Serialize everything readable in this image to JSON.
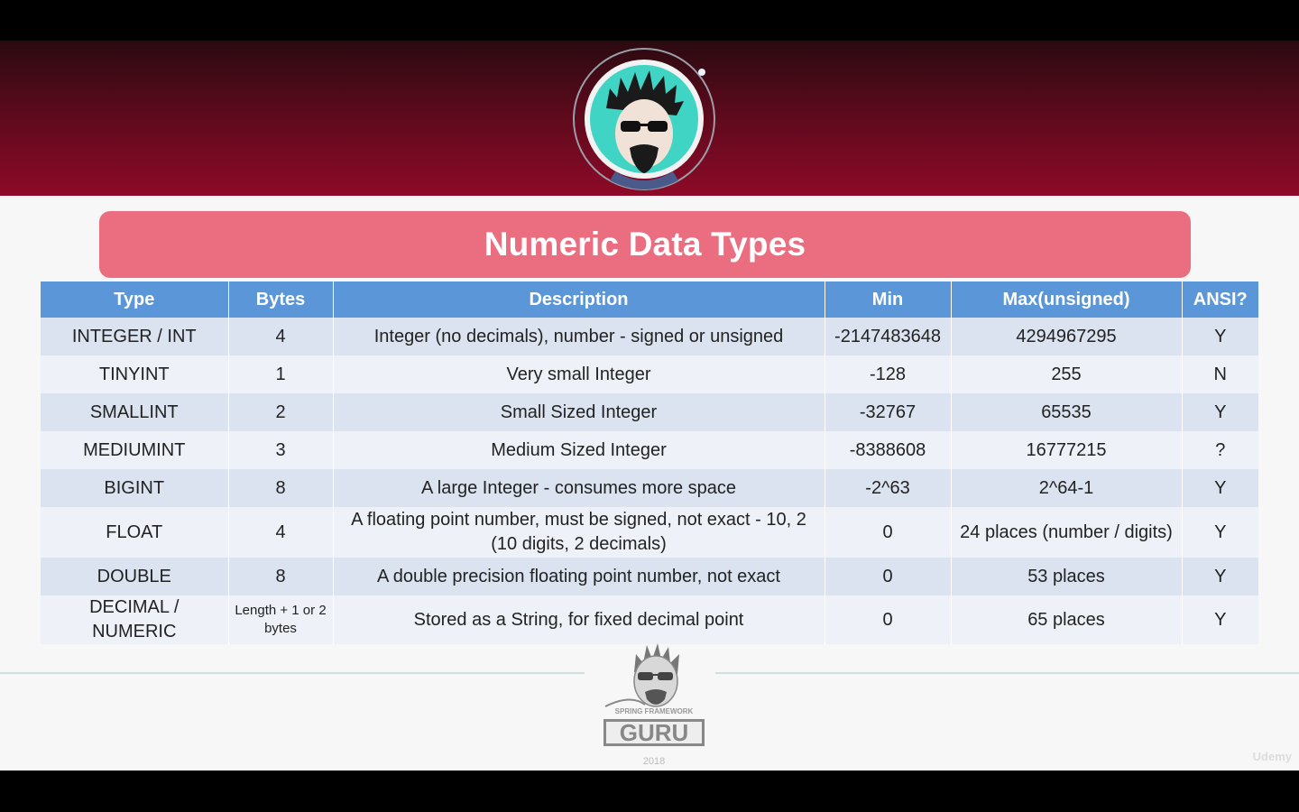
{
  "slide": {
    "title": "Numeric Data Types"
  },
  "table": {
    "headers": [
      "Type",
      "Bytes",
      "Description",
      "Min",
      "Max(unsigned)",
      "ANSI?"
    ],
    "rows": [
      {
        "type": "INTEGER / INT",
        "bytes": "4",
        "description": "Integer (no decimals), number - signed or unsigned",
        "min": "-2147483648",
        "max": "4294967295",
        "ansi": "Y"
      },
      {
        "type": "TINYINT",
        "bytes": "1",
        "description": "Very small Integer",
        "min": "-128",
        "max": "255",
        "ansi": "N"
      },
      {
        "type": "SMALLINT",
        "bytes": "2",
        "description": "Small Sized Integer",
        "min": "-32767",
        "max": "65535",
        "ansi": "Y"
      },
      {
        "type": "MEDIUMINT",
        "bytes": "3",
        "description": "Medium Sized Integer",
        "min": "-8388608",
        "max": "16777215",
        "ansi": "?"
      },
      {
        "type": "BIGINT",
        "bytes": "8",
        "description": "A large Integer - consumes more space",
        "min": "-2^63",
        "max": "2^64-1",
        "ansi": "Y"
      },
      {
        "type": "FLOAT",
        "bytes": "4",
        "description": "A floating point number, must be signed, not exact - 10, 2 (10 digits, 2 decimals)",
        "min": "0",
        "max": "24 places (number / digits)",
        "ansi": "Y"
      },
      {
        "type": "DOUBLE",
        "bytes": "8",
        "description": "A double precision floating point number, not exact",
        "min": "0",
        "max": "53 places",
        "ansi": "Y"
      },
      {
        "type": "DECIMAL / NUMERIC",
        "bytes": "Length + 1 or 2 bytes",
        "description": "Stored as a String, for fixed decimal point",
        "min": "0",
        "max": "65 places",
        "ansi": "Y"
      }
    ]
  },
  "footer": {
    "logo_top_text": "SPRING FRAMEWORK",
    "logo_text": "GURU",
    "year": "2018",
    "watermark": "Udemy"
  },
  "colors": {
    "header_band": "#8e0a28",
    "title_bar": "#ea6e80",
    "table_header": "#5b96d8",
    "row_odd": "#dbe3f0",
    "row_even": "#eef2f8"
  }
}
